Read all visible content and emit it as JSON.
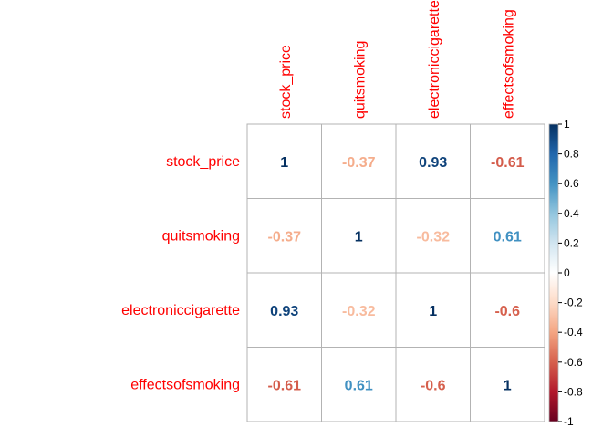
{
  "chart_data": {
    "type": "heatmap",
    "variables": [
      "stock_price",
      "quitsmoking",
      "electroniccigarette",
      "effectsofsmoking"
    ],
    "matrix": [
      [
        1,
        -0.37,
        0.93,
        -0.61
      ],
      [
        -0.37,
        1,
        -0.32,
        0.61
      ],
      [
        0.93,
        -0.32,
        1,
        -0.6
      ],
      [
        -0.61,
        0.61,
        -0.6,
        1
      ]
    ],
    "value_labels": [
      [
        "1",
        "-0.37",
        "0.93",
        "-0.61"
      ],
      [
        "-0.37",
        "1",
        "-0.32",
        "0.61"
      ],
      [
        "0.93",
        "-0.32",
        "1",
        "-0.6"
      ],
      [
        "-0.61",
        "0.61",
        "-0.6",
        "1"
      ]
    ],
    "colorbar": {
      "range": [
        -1,
        1
      ],
      "ticks": [
        "1",
        "0.8",
        "0.6",
        "0.4",
        "0.2",
        "0",
        "-0.2",
        "-0.4",
        "-0.6",
        "-0.8",
        "-1"
      ],
      "tick_values": [
        1,
        0.8,
        0.6,
        0.4,
        0.2,
        0,
        -0.2,
        -0.4,
        -0.6,
        -0.8,
        -1
      ]
    },
    "colors": {
      "label": "#ff0000",
      "grid": "#b3b3b3",
      "scale": [
        "#67001f",
        "#b2182b",
        "#d6604d",
        "#f4a582",
        "#fddbc7",
        "#ffffff",
        "#d1e5f0",
        "#92c5de",
        "#4393c3",
        "#2166ac",
        "#053061"
      ]
    },
    "legend": "right"
  }
}
